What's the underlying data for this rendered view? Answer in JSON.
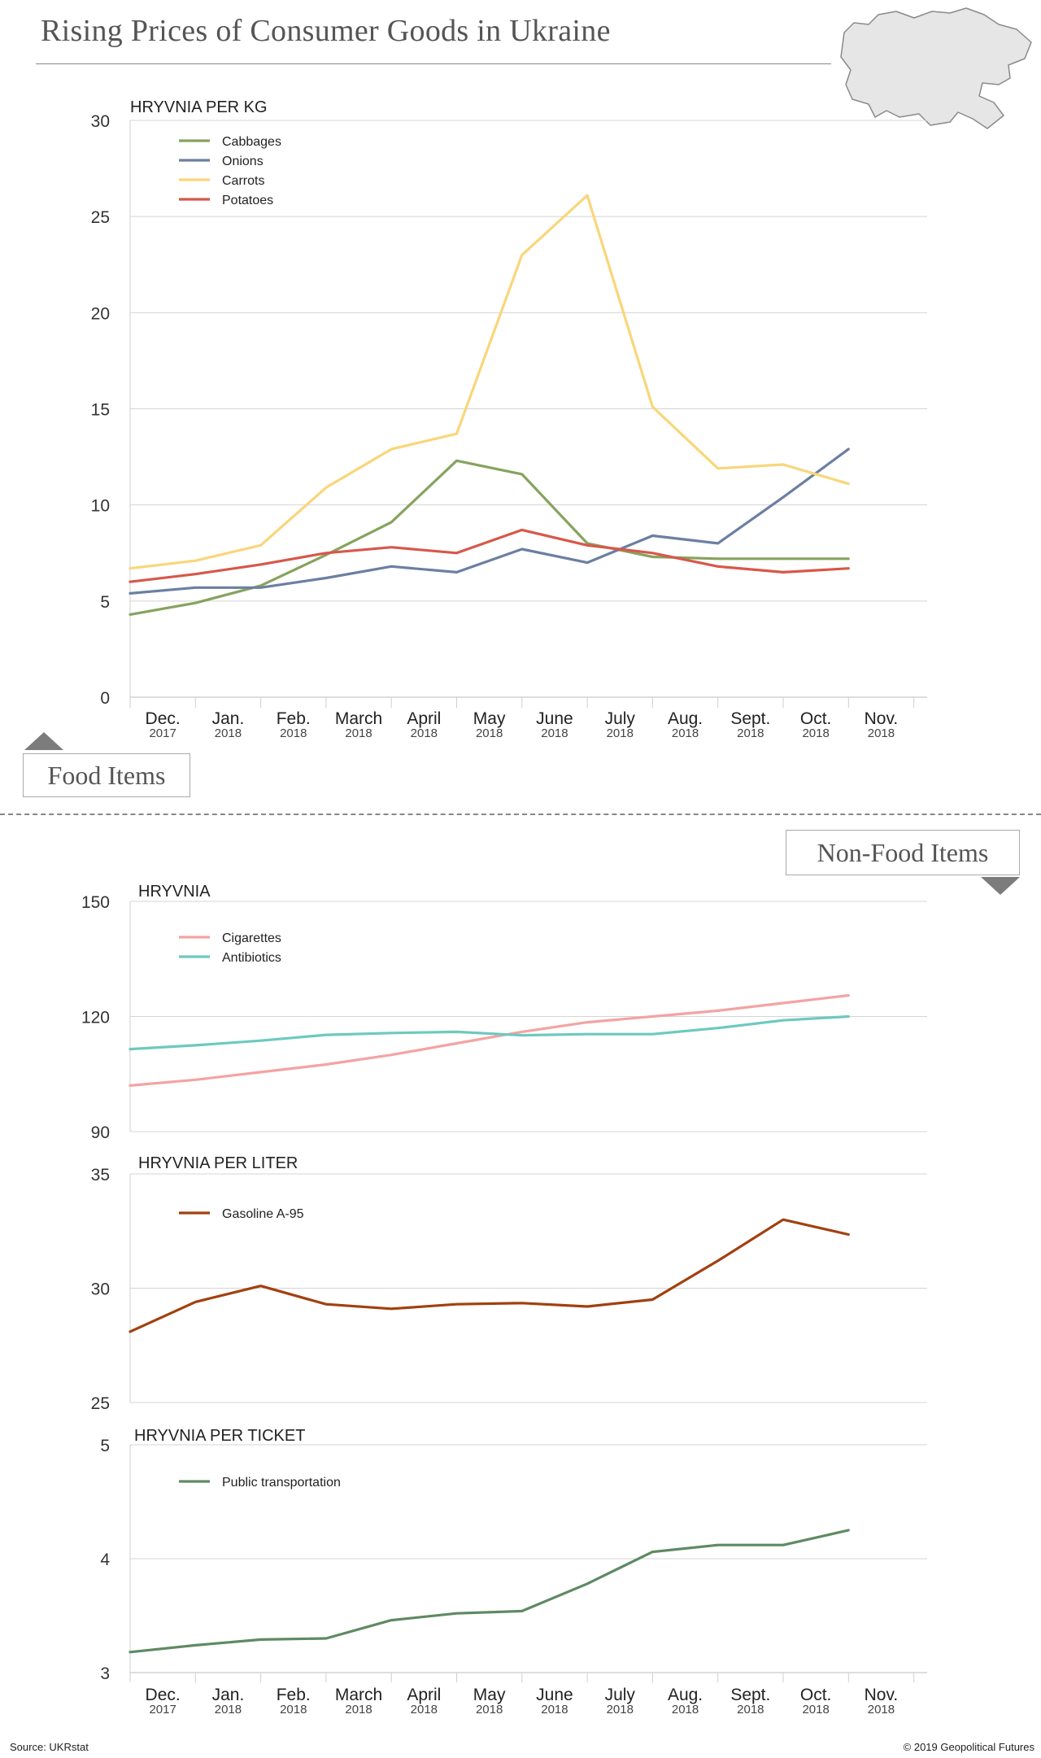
{
  "header": {
    "title": "Rising Prices of Consumer Goods in Ukraine",
    "map_icon": "ukraine-map-icon"
  },
  "sections": {
    "food_label": "Food Items",
    "nonfood_label": "Non-Food Items"
  },
  "footer": {
    "source": "Source: UKRstat",
    "copyright": "© 2019 Geopolitical Futures"
  },
  "colors": {
    "cabbages": "#86a35e",
    "onions": "#6c7fa2",
    "carrots": "#f9d67a",
    "potatoes": "#d8574a",
    "cigarettes": "#f4a3a3",
    "antibiotics": "#6dc9bf",
    "gasoline": "#a2400f",
    "transport": "#5e8a63"
  },
  "chart_data": [
    {
      "type": "line",
      "ylabel": "HRYVNIA PER KG",
      "ylim": [
        0,
        30
      ],
      "yticks": [
        0,
        5,
        10,
        15,
        20,
        25,
        30
      ],
      "grid": true,
      "legend": "top-left",
      "categories": [
        "Dec.",
        "Jan.",
        "Feb.",
        "March",
        "April",
        "May",
        "June",
        "July",
        "Aug.",
        "Sept.",
        "Oct.",
        "Nov."
      ],
      "years": [
        "2017",
        "2018",
        "2018",
        "2018",
        "2018",
        "2018",
        "2018",
        "2018",
        "2018",
        "2018",
        "2018",
        "2018"
      ],
      "series": [
        {
          "name": "Cabbages",
          "color": "#86a35e",
          "values": [
            4.3,
            4.9,
            5.8,
            7.4,
            9.1,
            12.3,
            11.6,
            8.0,
            7.3,
            7.2,
            7.2,
            7.2
          ]
        },
        {
          "name": "Onions",
          "color": "#6c7fa2",
          "values": [
            5.4,
            5.7,
            5.7,
            6.2,
            6.8,
            6.5,
            7.7,
            7.0,
            8.4,
            8.0,
            10.4,
            12.9
          ]
        },
        {
          "name": "Carrots",
          "color": "#f9d67a",
          "values": [
            6.7,
            7.1,
            7.9,
            10.9,
            12.9,
            13.7,
            23.0,
            26.1,
            15.1,
            11.9,
            12.1,
            11.1
          ]
        },
        {
          "name": "Potatoes",
          "color": "#d8574a",
          "values": [
            6.0,
            6.4,
            6.9,
            7.5,
            7.8,
            7.5,
            8.7,
            7.9,
            7.5,
            6.8,
            6.5,
            6.7
          ]
        }
      ]
    },
    {
      "type": "line",
      "ylabel": "HRYVNIA",
      "ylim": [
        90,
        150
      ],
      "yticks": [
        90,
        120,
        150
      ],
      "grid": true,
      "legend": "top-left",
      "categories": [
        "Dec.",
        "Jan.",
        "Feb.",
        "March",
        "April",
        "May",
        "June",
        "July",
        "Aug.",
        "Sept.",
        "Oct.",
        "Nov."
      ],
      "series": [
        {
          "name": "Cigarettes",
          "color": "#f4a3a3",
          "values": [
            102,
            103.5,
            105.5,
            107.5,
            110,
            113,
            116,
            118.5,
            120,
            121.5,
            123.5,
            125.5
          ]
        },
        {
          "name": "Antibiotics",
          "color": "#6dc9bf",
          "values": [
            111.5,
            112.5,
            113.7,
            115.2,
            115.7,
            116,
            115.1,
            115.4,
            115.4,
            117,
            119,
            120
          ]
        }
      ]
    },
    {
      "type": "line",
      "ylabel": "HRYVNIA PER LITER",
      "ylim": [
        25,
        35
      ],
      "yticks": [
        25,
        30,
        35
      ],
      "grid": true,
      "legend": "top-left",
      "categories": [
        "Dec.",
        "Jan.",
        "Feb.",
        "March",
        "April",
        "May",
        "June",
        "July",
        "Aug.",
        "Sept.",
        "Oct.",
        "Nov."
      ],
      "series": [
        {
          "name": "Gasoline A-95",
          "color": "#a2400f",
          "values": [
            28.1,
            29.4,
            30.1,
            29.3,
            29.1,
            29.3,
            29.35,
            29.2,
            29.5,
            31.2,
            33.0,
            32.35
          ]
        }
      ]
    },
    {
      "type": "line",
      "ylabel": "HRYVNIA PER TICKET",
      "ylim": [
        3,
        5
      ],
      "yticks": [
        3,
        4,
        5
      ],
      "grid": true,
      "legend": "top-left",
      "categories": [
        "Dec.",
        "Jan.",
        "Feb.",
        "March",
        "April",
        "May",
        "June",
        "July",
        "Aug.",
        "Sept.",
        "Oct.",
        "Nov."
      ],
      "years": [
        "2017",
        "2018",
        "2018",
        "2018",
        "2018",
        "2018",
        "2018",
        "2018",
        "2018",
        "2018",
        "2018",
        "2018"
      ],
      "series": [
        {
          "name": "Public transportation",
          "color": "#5e8a63",
          "values": [
            3.18,
            3.24,
            3.29,
            3.3,
            3.46,
            3.52,
            3.54,
            3.78,
            4.06,
            4.12,
            4.12,
            4.25
          ]
        }
      ]
    }
  ]
}
